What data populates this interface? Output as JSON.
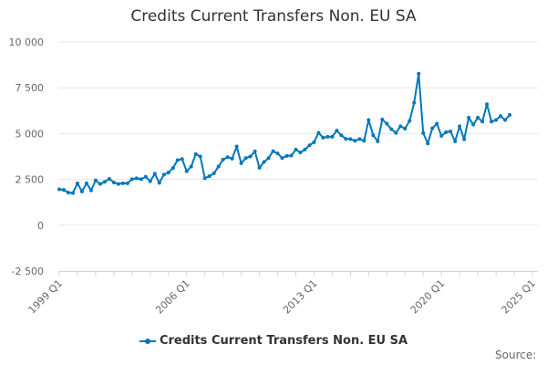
{
  "chart_data": {
    "type": "line",
    "title": "Credits Current Transfers Non. EU SA",
    "xlabel": "",
    "ylabel": "",
    "ylim": [
      -2500,
      10000
    ],
    "yticks": [
      -2500,
      0,
      2500,
      5000,
      7500,
      10000
    ],
    "ytick_labels": [
      "-2 500",
      "0",
      "2 500",
      "5 000",
      "7 500",
      "10 000"
    ],
    "xtick_labels": [
      "1999 Q1",
      "2006 Q1",
      "2013 Q1",
      "2020 Q1",
      "2025 Q1"
    ],
    "xlim": [
      "1999 Q1",
      "2025 Q1"
    ],
    "grid": true,
    "legend_placement": "bottom",
    "color": "#0077bb",
    "x": [
      "1999 Q1",
      "1999 Q2",
      "1999 Q3",
      "1999 Q4",
      "2000 Q1",
      "2000 Q2",
      "2000 Q3",
      "2000 Q4",
      "2001 Q1",
      "2001 Q2",
      "2001 Q3",
      "2001 Q4",
      "2002 Q1",
      "2002 Q2",
      "2002 Q3",
      "2002 Q4",
      "2003 Q1",
      "2003 Q2",
      "2003 Q3",
      "2003 Q4",
      "2004 Q1",
      "2004 Q2",
      "2004 Q3",
      "2004 Q4",
      "2005 Q1",
      "2005 Q2",
      "2005 Q3",
      "2005 Q4",
      "2006 Q1",
      "2006 Q2",
      "2006 Q3",
      "2006 Q4",
      "2007 Q1",
      "2007 Q2",
      "2007 Q3",
      "2007 Q4",
      "2008 Q1",
      "2008 Q2",
      "2008 Q3",
      "2008 Q4",
      "2009 Q1",
      "2009 Q2",
      "2009 Q3",
      "2009 Q4",
      "2010 Q1",
      "2010 Q2",
      "2010 Q3",
      "2010 Q4",
      "2011 Q1",
      "2011 Q2",
      "2011 Q3",
      "2011 Q4",
      "2012 Q1",
      "2012 Q2",
      "2012 Q3",
      "2012 Q4",
      "2013 Q1",
      "2013 Q2",
      "2013 Q3",
      "2013 Q4",
      "2014 Q1",
      "2014 Q2",
      "2014 Q3",
      "2014 Q4",
      "2015 Q1",
      "2015 Q2",
      "2015 Q3",
      "2015 Q4",
      "2016 Q1",
      "2016 Q2",
      "2016 Q3",
      "2016 Q4",
      "2017 Q1",
      "2017 Q2",
      "2017 Q3",
      "2017 Q4",
      "2018 Q1",
      "2018 Q2",
      "2018 Q3",
      "2018 Q4",
      "2019 Q1",
      "2019 Q2",
      "2019 Q3",
      "2019 Q4",
      "2020 Q1",
      "2020 Q2",
      "2020 Q3",
      "2020 Q4",
      "2021 Q1",
      "2021 Q2",
      "2021 Q3",
      "2021 Q4",
      "2022 Q1",
      "2022 Q2",
      "2022 Q3",
      "2022 Q4",
      "2023 Q1",
      "2023 Q2",
      "2023 Q3",
      "2023 Q4"
    ],
    "series": [
      {
        "name": "Credits Current Transfers Non. EU SA",
        "values": [
          1955,
          1925,
          1775,
          1760,
          2290,
          1840,
          2290,
          1900,
          2450,
          2250,
          2370,
          2530,
          2330,
          2250,
          2290,
          2290,
          2510,
          2560,
          2510,
          2640,
          2400,
          2810,
          2310,
          2760,
          2870,
          3120,
          3550,
          3610,
          2950,
          3200,
          3880,
          3750,
          2570,
          2670,
          2835,
          3200,
          3580,
          3715,
          3630,
          4295,
          3380,
          3665,
          3750,
          4030,
          3135,
          3450,
          3665,
          4045,
          3915,
          3665,
          3780,
          3800,
          4130,
          3965,
          4130,
          4360,
          4530,
          5040,
          4775,
          4830,
          4830,
          5160,
          4910,
          4710,
          4700,
          4610,
          4700,
          4610,
          5740,
          4910,
          4580,
          5770,
          5540,
          5240,
          5040,
          5400,
          5270,
          5690,
          6680,
          8270,
          5025,
          4460,
          5290,
          5540,
          4875,
          5075,
          5120,
          4580,
          5400,
          4690,
          5870,
          5490,
          5870,
          5655,
          6600,
          5655,
          5740,
          5955,
          5740,
          6020
        ]
      }
    ]
  },
  "source_label": "Source:"
}
